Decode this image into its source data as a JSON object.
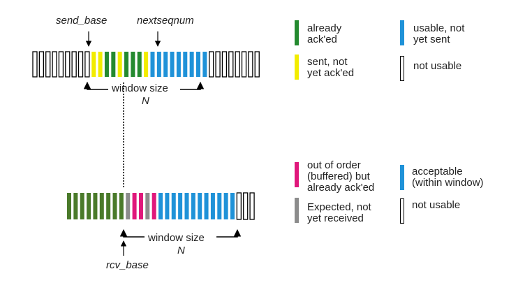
{
  "colors": {
    "acked": "#248a2f",
    "sent_not_acked": "#f2ec00",
    "usable": "#1f92d8",
    "not_usable": "#ffffff",
    "out_of_order": "#e0177b",
    "expected": "#8c8c8c",
    "acceptable": "#1f92d8",
    "receiver_acked": "#4a7a2a"
  },
  "sender": {
    "send_base_label": "send_base",
    "nextseqnum_label": "nextseqnum",
    "window_label": "window size",
    "window_n": "N",
    "slots": [
      "not_usable",
      "not_usable",
      "not_usable",
      "not_usable",
      "not_usable",
      "not_usable",
      "not_usable",
      "not_usable",
      "not_usable",
      "sent_not_acked",
      "sent_not_acked",
      "acked",
      "acked",
      "sent_not_acked",
      "acked",
      "acked",
      "acked",
      "sent_not_acked",
      "usable",
      "usable",
      "usable",
      "usable",
      "usable",
      "usable",
      "usable",
      "usable",
      "usable",
      "not_usable",
      "not_usable",
      "not_usable",
      "not_usable",
      "not_usable",
      "not_usable",
      "not_usable",
      "not_usable"
    ],
    "legend": [
      {
        "key": "acked",
        "label": "already\nack'ed"
      },
      {
        "key": "usable",
        "label": "usable, not\nyet sent"
      },
      {
        "key": "sent_not_acked",
        "label": "sent, not\nyet ack'ed"
      },
      {
        "key": "not_usable",
        "label": "not usable"
      }
    ]
  },
  "receiver": {
    "rcv_base_label": "rcv_base",
    "window_label": "window size",
    "window_n": "N",
    "slots": [
      "receiver_acked",
      "receiver_acked",
      "receiver_acked",
      "receiver_acked",
      "receiver_acked",
      "receiver_acked",
      "receiver_acked",
      "receiver_acked",
      "receiver_acked",
      "expected",
      "out_of_order",
      "out_of_order",
      "expected",
      "out_of_order",
      "acceptable",
      "acceptable",
      "acceptable",
      "acceptable",
      "acceptable",
      "acceptable",
      "acceptable",
      "acceptable",
      "acceptable",
      "acceptable",
      "acceptable",
      "acceptable",
      "not_usable",
      "not_usable",
      "not_usable"
    ],
    "legend": [
      {
        "key": "out_of_order",
        "label": "out of order\n(buffered) but\nalready ack'ed"
      },
      {
        "key": "acceptable",
        "label": "acceptable\n(within window)"
      },
      {
        "key": "expected",
        "label": "Expected, not\nyet received"
      },
      {
        "key": "not_usable",
        "label": "not usable"
      }
    ]
  }
}
